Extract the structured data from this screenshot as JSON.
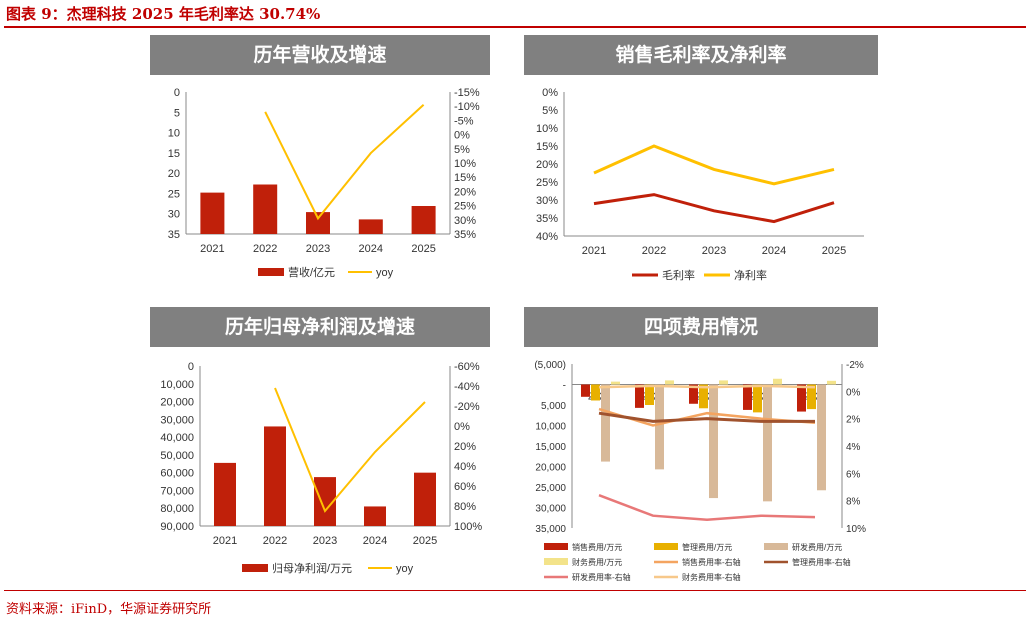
{
  "figure_title": "图表 9：杰理科技 2025 年毛利率达 30.74%",
  "source": "资料来源：iFinD，华源证券研究所",
  "colors": {
    "red": "#c0200a",
    "yellow": "#ffc000",
    "tan": "#d8b999",
    "gold": "#e8b000",
    "salmon": "#e87878",
    "orange": "#f4a460",
    "brown": "#a0522d",
    "pale_yellow": "#f3e38a",
    "light_orange": "#f7c88a",
    "header": "#808080"
  },
  "panels": {
    "p1": {
      "header": "历年营收及增速"
    },
    "p2": {
      "header": "销售毛利率及净利率"
    },
    "p3": {
      "header": "历年归母净利润及增速"
    },
    "p4": {
      "header": "四项费用情况"
    }
  },
  "chart_data": [
    {
      "id": "p1",
      "type": "bar+line",
      "categories": [
        "2021",
        "2022",
        "2023",
        "2024",
        "2025"
      ],
      "ylim_left": [
        0,
        35
      ],
      "ylim_right": [
        -15,
        35
      ],
      "left_ticks": [
        0,
        5,
        10,
        15,
        20,
        25,
        30,
        35
      ],
      "right_ticks": [
        -15,
        -10,
        -5,
        0,
        5,
        10,
        15,
        20,
        25,
        30,
        35
      ],
      "series": [
        {
          "name": "营收/亿元",
          "kind": "bar",
          "axis": "left",
          "color": "red",
          "values": [
            24.8,
            22.8,
            29.6,
            31.4,
            28.1
          ]
        },
        {
          "name": "yoy",
          "kind": "line",
          "axis": "right",
          "color": "yellow",
          "values": [
            null,
            -8.0,
            29.5,
            6.5,
            -10.5
          ]
        }
      ]
    },
    {
      "id": "p2",
      "type": "line",
      "categories": [
        "2021",
        "2022",
        "2023",
        "2024",
        "2025"
      ],
      "ylim": [
        0,
        40
      ],
      "ticks": [
        0,
        5,
        10,
        15,
        20,
        25,
        30,
        35,
        40
      ],
      "series": [
        {
          "name": "毛利率",
          "color": "red",
          "values": [
            31.0,
            28.5,
            33.0,
            36.0,
            30.74
          ]
        },
        {
          "name": "净利率",
          "color": "yellow",
          "values": [
            22.5,
            15.0,
            21.5,
            25.5,
            21.5
          ]
        }
      ]
    },
    {
      "id": "p3",
      "type": "bar+line",
      "categories": [
        "2021",
        "2022",
        "2023",
        "2024",
        "2025"
      ],
      "ylim_left": [
        0,
        90000
      ],
      "ylim_right": [
        -60,
        100
      ],
      "left_ticks": [
        0,
        10000,
        20000,
        30000,
        40000,
        50000,
        60000,
        70000,
        80000,
        90000
      ],
      "left_tick_labels": [
        "0",
        "10,000",
        "20,000",
        "30,000",
        "40,000",
        "50,000",
        "60,000",
        "70,000",
        "80,000",
        "90,000"
      ],
      "right_ticks": [
        -60,
        -40,
        -20,
        0,
        20,
        40,
        60,
        80,
        100
      ],
      "series": [
        {
          "name": "归母净利润/万元",
          "kind": "bar",
          "axis": "left",
          "color": "red",
          "values": [
            54500,
            34000,
            62500,
            79000,
            60000
          ]
        },
        {
          "name": "yoy",
          "kind": "line",
          "axis": "right",
          "color": "yellow",
          "values": [
            null,
            -38,
            85,
            26,
            -24
          ]
        }
      ]
    },
    {
      "id": "p4",
      "type": "bar+line",
      "categories": [
        "2021",
        "2022",
        "2023",
        "2024",
        "2025"
      ],
      "ylim_left": [
        -5000,
        35000
      ],
      "ylim_right": [
        -2,
        10
      ],
      "left_ticks": [
        -5000,
        0,
        5000,
        10000,
        15000,
        20000,
        25000,
        30000,
        35000
      ],
      "left_tick_labels": [
        "(5,000)",
        "-",
        "5,000",
        "10,000",
        "15,000",
        "20,000",
        "25,000",
        "30,000",
        "35,000"
      ],
      "right_ticks": [
        -2,
        0,
        2,
        4,
        6,
        8,
        10
      ],
      "series": [
        {
          "name": "销售费用/万元",
          "kind": "bar",
          "axis": "left",
          "color": "red",
          "values": [
            3000,
            5700,
            4700,
            6200,
            6600
          ]
        },
        {
          "name": "管理费用/万元",
          "kind": "bar",
          "axis": "left",
          "color": "gold",
          "values": [
            3900,
            5000,
            5800,
            6800,
            6000
          ]
        },
        {
          "name": "研发费用/万元",
          "kind": "bar",
          "axis": "left",
          "color": "tan",
          "values": [
            18800,
            20700,
            27700,
            28500,
            25800
          ]
        },
        {
          "name": "财务费用/万元",
          "kind": "bar",
          "axis": "left",
          "color": "pale_yellow",
          "values": [
            -700,
            -1000,
            -1000,
            -1400,
            -900
          ]
        },
        {
          "name": "销售费用率-右轴",
          "kind": "line",
          "axis": "right",
          "color": "orange",
          "values": [
            1.3,
            2.5,
            1.6,
            2.0,
            2.3
          ]
        },
        {
          "name": "管理费用率-右轴",
          "kind": "line",
          "axis": "right",
          "color": "brown",
          "values": [
            1.6,
            2.2,
            2.0,
            2.2,
            2.2
          ]
        },
        {
          "name": "研发费用率-右轴",
          "kind": "line",
          "axis": "right",
          "color": "salmon",
          "values": [
            7.6,
            9.1,
            9.4,
            9.1,
            9.2
          ]
        },
        {
          "name": "财务费用率-右轴",
          "kind": "line",
          "axis": "right",
          "color": "light_orange",
          "values": [
            -0.3,
            -0.4,
            -0.3,
            -0.4,
            -0.3
          ]
        }
      ]
    }
  ]
}
